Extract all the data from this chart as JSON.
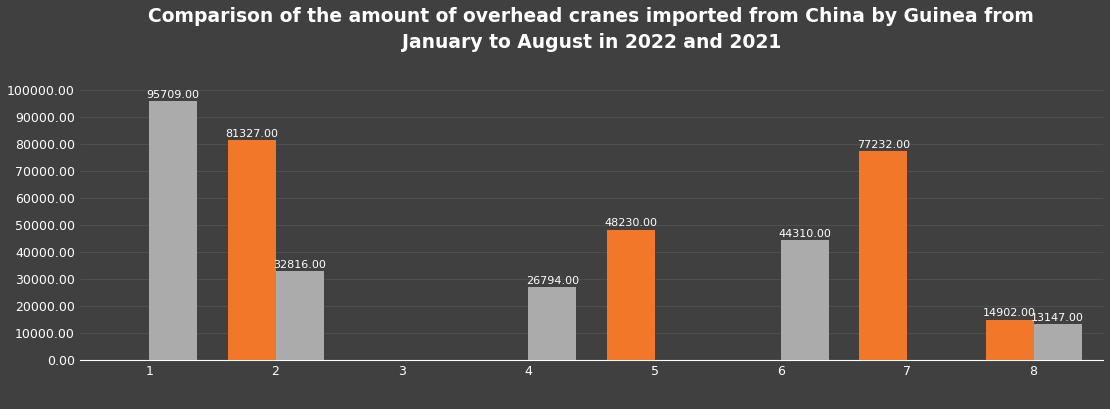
{
  "title": "Comparison of the amount of overhead cranes imported from China by Guinea from\nJanuary to August in 2022 and 2021",
  "months": [
    1,
    2,
    3,
    4,
    5,
    6,
    7,
    8
  ],
  "values_2021": [
    0,
    81327,
    0,
    0,
    48230,
    0,
    77232,
    14902
  ],
  "values_2022": [
    95709,
    32816,
    0,
    26794,
    0,
    44310,
    0,
    13147
  ],
  "color_2021": "#F07828",
  "color_2022": "#ABABAB",
  "background_color": "#404040",
  "text_color": "#ffffff",
  "grid_color": "#525252",
  "ylim": [
    0,
    108000
  ],
  "yticks": [
    0,
    10000,
    20000,
    30000,
    40000,
    50000,
    60000,
    70000,
    80000,
    90000,
    100000
  ],
  "ytick_labels": [
    "0.00",
    "10000.00",
    "20000.00",
    "30000.00",
    "40000.00",
    "50000.00",
    "60000.00",
    "70000.00",
    "80000.00",
    "90000.00",
    "100000.00"
  ],
  "bar_width": 0.38,
  "label_fontsize": 8,
  "title_fontsize": 13.5,
  "tick_fontsize": 9,
  "legend_fontsize": 9
}
